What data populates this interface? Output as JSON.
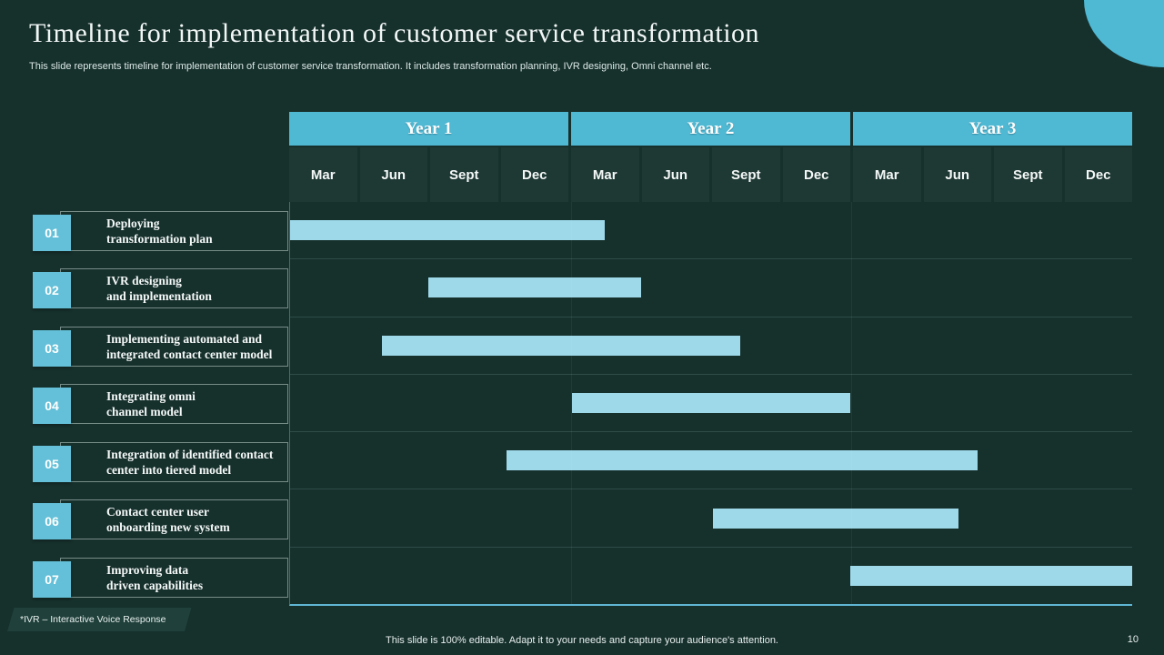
{
  "slide": {
    "title": "Timeline for implementation of customer service transformation",
    "subtitle": "This slide represents timeline for implementation of customer service transformation. It includes transformation planning, IVR designing, Omni channel etc.",
    "footnote": "*IVR – Interactive Voice Response",
    "footer": "This slide is 100% editable. Adapt it to your needs and capture your audience's attention.",
    "page_number": "10"
  },
  "colors": {
    "background": "#16302c",
    "accent": "#4fb8d3",
    "badge": "#64c0d8",
    "bar": "#9ed9ea",
    "month_cell": "#1e3834",
    "bottom_line": "#5fb6d3"
  },
  "chart_data": {
    "type": "gantt",
    "title": "Timeline for implementation of customer service transformation",
    "years": [
      "Year 1",
      "Year 2",
      "Year 3"
    ],
    "quarters": [
      "Mar",
      "Jun",
      "Sept",
      "Dec"
    ],
    "columns_total": 12,
    "column_unit": "quarter",
    "tasks": [
      {
        "id": "01",
        "label": "Deploying\ntransformation plan",
        "start": 0.0,
        "end": 4.48
      },
      {
        "id": "02",
        "label": "IVR designing\nand implementation",
        "start": 1.97,
        "end": 5.0
      },
      {
        "id": "03",
        "label": "Implementing automated and\nintegrated contact center model",
        "start": 1.31,
        "end": 6.42
      },
      {
        "id": "04",
        "label": "Integrating omni\nchannel model",
        "start": 4.02,
        "end": 7.98
      },
      {
        "id": "05",
        "label": "Integration of identified contact\ncenter into tiered model",
        "start": 3.08,
        "end": 9.8
      },
      {
        "id": "06",
        "label": "Contact center user\nonboarding new system",
        "start": 6.03,
        "end": 9.52
      },
      {
        "id": "07",
        "label": "Improving data\ndriven capabilities",
        "start": 7.98,
        "end": 12.0
      }
    ]
  }
}
